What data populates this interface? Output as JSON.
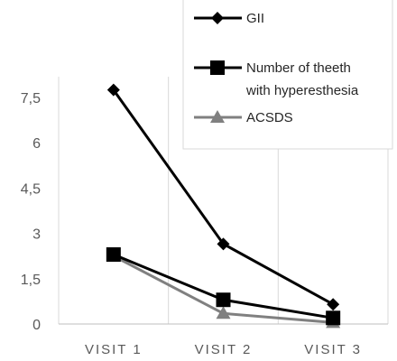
{
  "chart_data": {
    "type": "line",
    "categories": [
      "VISIT 1",
      "VISIT 2",
      "VISIT 3"
    ],
    "series": [
      {
        "name": "GII",
        "values": [
          7.75,
          2.65,
          0.65
        ],
        "color": "#000000",
        "marker": "diamond"
      },
      {
        "name": [
          "Number of theeth",
          "with hyperesthesia"
        ],
        "values": [
          2.3,
          0.8,
          0.2
        ],
        "color": "#000000",
        "marker": "square"
      },
      {
        "name": "ACSDS",
        "values": [
          2.25,
          0.35,
          0.05
        ],
        "color": "#808080",
        "marker": "triangle"
      }
    ],
    "y_ticks": [
      "0",
      "1,5",
      "3",
      "4,5",
      "6",
      "7,5"
    ],
    "y_tick_values": [
      0,
      1.5,
      3,
      4.5,
      6,
      7.5
    ],
    "ylim": [
      0,
      7.5
    ],
    "title": "",
    "xlabel": "",
    "ylabel": "",
    "grid": "vertical",
    "legend": "top-right"
  }
}
